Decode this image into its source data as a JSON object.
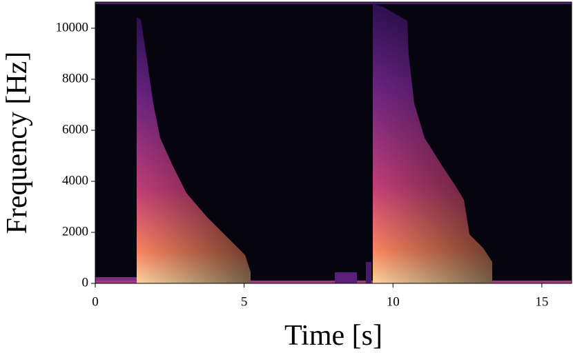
{
  "chart_data": {
    "type": "spectrogram",
    "x_label": "Time [s]",
    "y_label": "Frequency [Hz]",
    "xlim": [
      0,
      16
    ],
    "xticks": [
      0,
      5,
      10,
      15
    ],
    "ylim": [
      0,
      11025
    ],
    "yticks": [
      0,
      2000,
      4000,
      6000,
      8000,
      10000
    ]
  }
}
